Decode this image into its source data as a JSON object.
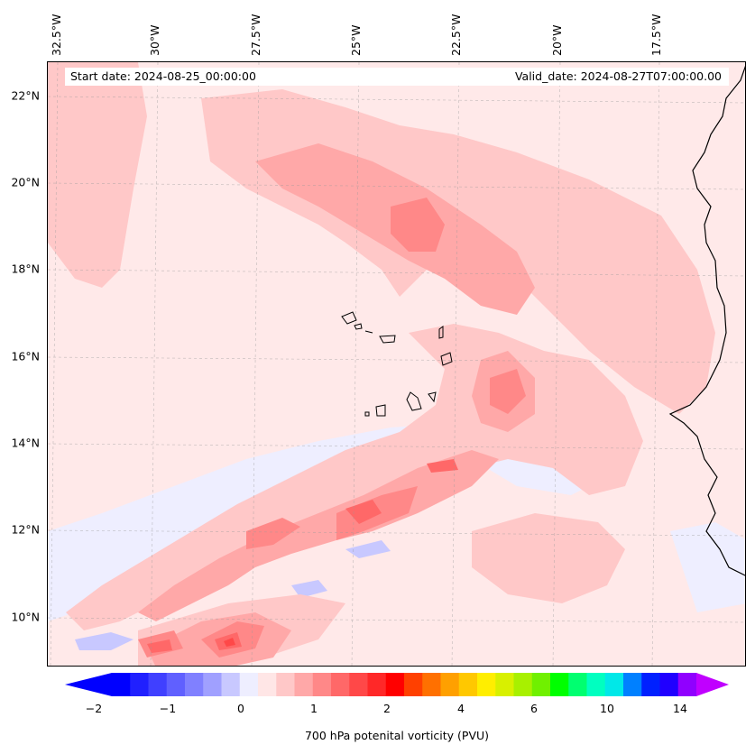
{
  "header": {
    "start_date": "Start date: 2024-08-25_00:00:00",
    "valid_date": "Valid_date: 2024-08-27T07:00:00.00"
  },
  "longitude_labels": [
    "32.5°W",
    "30°W",
    "27.5°W",
    "25°W",
    "22.5°W",
    "20°W",
    "17.5°W"
  ],
  "latitude_labels": [
    "22°N",
    "20°N",
    "18°N",
    "16°N",
    "14°N",
    "12°N",
    "10°N"
  ],
  "colorbar": {
    "label": "700 hPa potenital vorticity (PVU)",
    "ticks": [
      "−2",
      "−1",
      "0",
      "1",
      "2",
      "4",
      "6",
      "10",
      "14"
    ],
    "colors": [
      "#0000ff",
      "#2020ff",
      "#4040ff",
      "#6060ff",
      "#8080ff",
      "#a0a0ff",
      "#c8c8ff",
      "#eeeeff",
      "#ffe6e6",
      "#ffc8c8",
      "#ffa8a8",
      "#ff8888",
      "#ff6868",
      "#ff4848",
      "#ff2828",
      "#ff0000",
      "#ff4000",
      "#ff7000",
      "#ffa000",
      "#ffc800",
      "#ffee00",
      "#d8f000",
      "#a8f000",
      "#70f000",
      "#00ff00",
      "#00ff70",
      "#00ffc0",
      "#00e8e8",
      "#0080ff",
      "#0020ff",
      "#2000ff",
      "#9000ff"
    ],
    "min_color": "#0000ff",
    "max_color": "#c000ff"
  },
  "map": {
    "background_color": "#ffe9e9",
    "field_colors": {
      "very_light_blue": "#eeeeff",
      "light_blue": "#c8c8ff",
      "light_pink": "#ffc8c8",
      "pink": "#ffa8a8",
      "medium_red": "#ff8888",
      "red": "#ff6868",
      "strong_red": "#ff4848"
    }
  }
}
